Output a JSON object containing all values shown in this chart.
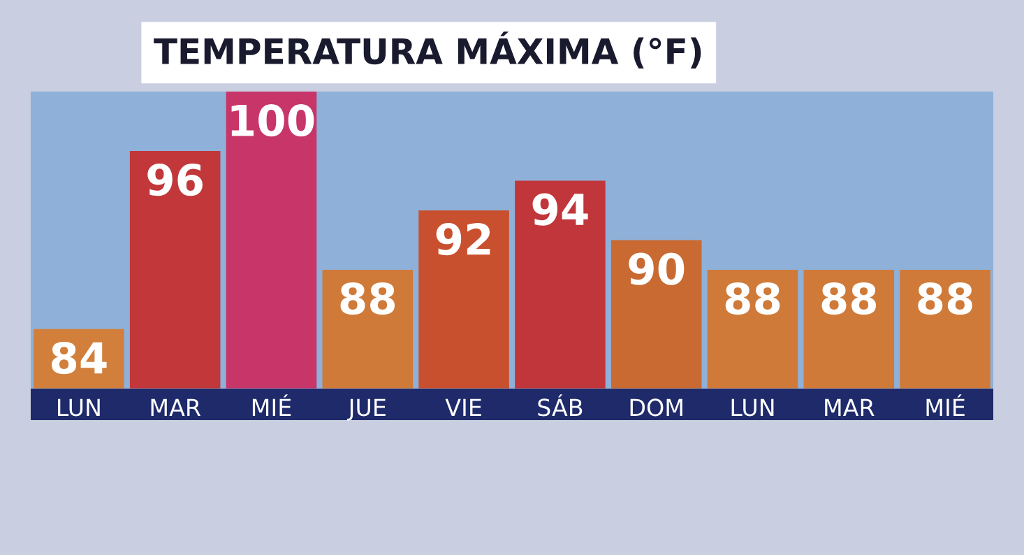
{
  "chart_data": {
    "type": "bar",
    "title": "TEMPERATURA MÁXIMA (°F)",
    "categories": [
      "LUN",
      "MAR",
      "MIÉ",
      "JUE",
      "VIE",
      "SÁB",
      "DOM",
      "LUN",
      "MAR",
      "MIÉ"
    ],
    "values": [
      84,
      96,
      100,
      88,
      92,
      94,
      90,
      88,
      88,
      88
    ],
    "colors": [
      "#d17f3b",
      "#c1373a",
      "#c73569",
      "#cf7a38",
      "#c9502f",
      "#c1363a",
      "#c96a32",
      "#cf7a38",
      "#cf7a38",
      "#cf7a38"
    ],
    "data_labels": true,
    "ylim": [
      80,
      100
    ],
    "tick_labels": "x",
    "grid": false,
    "legend": false
  }
}
